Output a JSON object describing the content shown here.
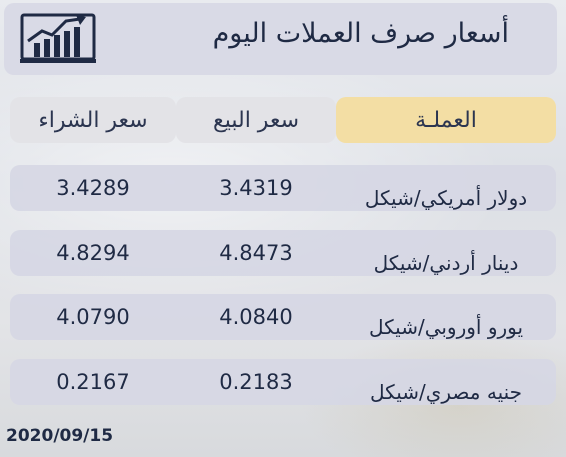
{
  "header": {
    "title": "أسعار صرف العملات اليوم",
    "icon": "chart-icon"
  },
  "columns": {
    "currency": "العملـة",
    "sell": "سعر البيع",
    "buy": "سعر الشراء"
  },
  "rows": [
    {
      "name": "دولار أمريكي/شيكل",
      "sell": "3.4319",
      "buy": "3.4289"
    },
    {
      "name": "دينار أردني/شيكل",
      "sell": "4.8473",
      "buy": "4.8294"
    },
    {
      "name": "يورو أوروبي/شيكل",
      "sell": "4.0840",
      "buy": "4.0790"
    },
    {
      "name": "جنيه مصري/شيكل",
      "sell": "0.2183",
      "buy": "0.2167"
    }
  ],
  "date": "2020/09/15",
  "colors": {
    "gold": "#f3dea4",
    "navy": "#1f2a44",
    "panel": "#d9dae6"
  }
}
